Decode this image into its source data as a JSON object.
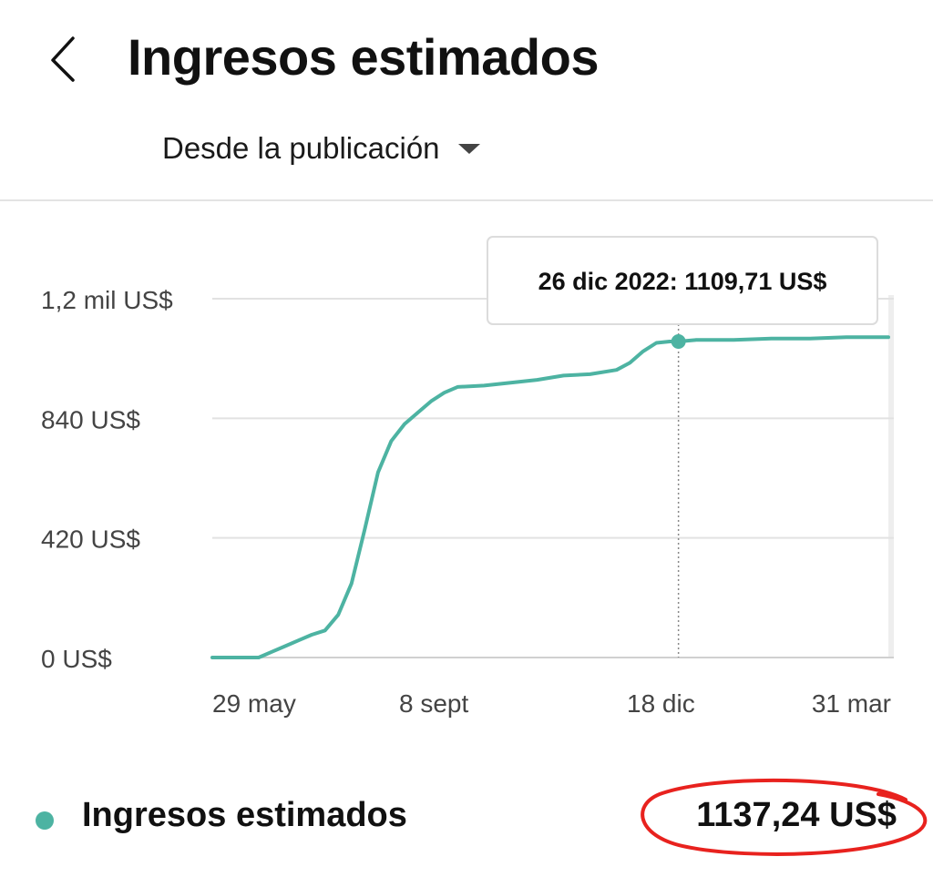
{
  "header": {
    "back_icon": "chevron-left-icon",
    "title": "Ingresos estimados",
    "range": {
      "selected": "Desde la publicación",
      "icon": "caret-down-icon"
    }
  },
  "chart_data": {
    "type": "line",
    "title": "",
    "xlabel": "",
    "ylabel": "",
    "x_tick_labels": [
      "29 may",
      "8 sept",
      "18 dic",
      "31 mar"
    ],
    "y_tick_labels": [
      "0 US$",
      "420 US$",
      "840 US$",
      "1,2 mil US$"
    ],
    "y_ticks": [
      0,
      420,
      840,
      1260
    ],
    "xlim": [
      "2022-05-29",
      "2023-03-31"
    ],
    "ylim": [
      0,
      1260
    ],
    "grid": true,
    "legend": "bottom",
    "color": "#4db3a2",
    "series": [
      {
        "name": "Ingresos estimados",
        "x": [
          "2022-05-29",
          "2022-06-19",
          "2022-06-25",
          "2022-07-01",
          "2022-07-07",
          "2022-07-13",
          "2022-07-19",
          "2022-07-25",
          "2022-07-31",
          "2022-08-06",
          "2022-08-12",
          "2022-08-18",
          "2022-08-24",
          "2022-08-30",
          "2022-09-05",
          "2022-09-11",
          "2022-09-17",
          "2022-09-29",
          "2022-10-11",
          "2022-10-23",
          "2022-11-04",
          "2022-11-16",
          "2022-11-28",
          "2022-12-04",
          "2022-12-10",
          "2022-12-16",
          "2022-12-22",
          "2022-12-26",
          "2023-01-03",
          "2023-01-20",
          "2023-02-06",
          "2023-02-23",
          "2023-03-12",
          "2023-03-31"
        ],
        "values": [
          0,
          0,
          20,
          40,
          60,
          80,
          95,
          150,
          260,
          450,
          650,
          760,
          820,
          860,
          900,
          930,
          950,
          955,
          965,
          975,
          990,
          995,
          1010,
          1035,
          1075,
          1105,
          1109.71,
          1109.71,
          1115,
          1115,
          1120,
          1120,
          1125,
          1125
        ]
      }
    ],
    "tooltip": {
      "x": "2022-12-26",
      "text": "26 dic 2022: 1109,71 US$"
    }
  },
  "footer": {
    "legend_label": "Ingresos estimados",
    "total": "1137,24 US$",
    "highlight_color": "#e8221e"
  }
}
